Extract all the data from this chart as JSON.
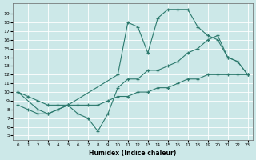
{
  "xlabel": "Humidex (Indice chaleur)",
  "bg_color": "#cce8e8",
  "grid_color": "#ffffff",
  "line_color": "#2d7a6e",
  "xlim": [
    -0.5,
    23.5
  ],
  "ylim": [
    4.5,
    20.2
  ],
  "xticks": [
    0,
    1,
    2,
    3,
    4,
    5,
    6,
    7,
    8,
    9,
    10,
    11,
    12,
    13,
    14,
    15,
    16,
    17,
    18,
    19,
    20,
    21,
    22,
    23
  ],
  "yticks": [
    5,
    6,
    7,
    8,
    9,
    10,
    11,
    12,
    13,
    14,
    15,
    16,
    17,
    18,
    19
  ],
  "line1_x": [
    0,
    1,
    2,
    3,
    4,
    5,
    6,
    7,
    8,
    9,
    10,
    11,
    12,
    13,
    14,
    15,
    16,
    17,
    18,
    19,
    20,
    21,
    22,
    23
  ],
  "line1_y": [
    10,
    9.5,
    9.0,
    8.5,
    8.5,
    8.5,
    8.5,
    8.5,
    8.5,
    9.0,
    9.5,
    9.5,
    10.0,
    10.0,
    10.5,
    10.5,
    11.0,
    11.5,
    11.5,
    12.0,
    12.0,
    12.0,
    12.0,
    12.0
  ],
  "line2_x": [
    0,
    1,
    2,
    3,
    4,
    5,
    6,
    7,
    8,
    9,
    10,
    11,
    12,
    13,
    14,
    15,
    16,
    17,
    18,
    19,
    20,
    21,
    22,
    23
  ],
  "line2_y": [
    8.5,
    8.0,
    7.5,
    7.5,
    8.0,
    8.5,
    7.5,
    7.0,
    5.5,
    7.5,
    10.5,
    11.5,
    11.5,
    12.5,
    12.5,
    13.0,
    13.5,
    14.5,
    15.0,
    16.0,
    16.5,
    14.0,
    13.5,
    12.0
  ],
  "line3_x": [
    0,
    2,
    3,
    4,
    5,
    10,
    11,
    12,
    13,
    14,
    15,
    16,
    17,
    18,
    19,
    20,
    21,
    22,
    23
  ],
  "line3_y": [
    10,
    8.0,
    7.5,
    8.0,
    8.5,
    12.0,
    18.0,
    17.5,
    14.5,
    18.5,
    19.5,
    19.5,
    19.5,
    17.5,
    16.5,
    16.0,
    14.0,
    13.5,
    12.0
  ]
}
